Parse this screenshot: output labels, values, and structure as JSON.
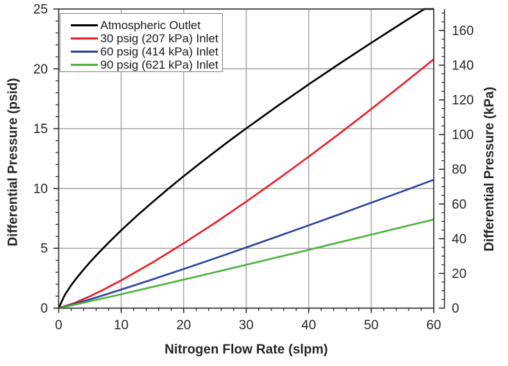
{
  "chart_data": {
    "type": "line",
    "title": "",
    "xlabel": "Nitrogen Flow Rate (slpm)",
    "ylabel_left": "Differential Pressure (psid)",
    "ylabel_right": "Differential Pressure (kPa)",
    "xlim": [
      0,
      60
    ],
    "ylim_left_psid": [
      0,
      25
    ],
    "ylim_right_kpa": [
      0,
      172.37
    ],
    "x_major_ticks": [
      0,
      10,
      20,
      30,
      40,
      50,
      60
    ],
    "x_minor_step": 2,
    "y_left_major_ticks": [
      0,
      5,
      10,
      15,
      20,
      25
    ],
    "y_left_minor_step": 1,
    "y_right_major_ticks": [
      0,
      20,
      40,
      60,
      80,
      100,
      120,
      140,
      160
    ],
    "y_right_minor_step": 5,
    "grid": true,
    "legend_position": "upper-left",
    "series": [
      {
        "name": "Atmospheric Outlet",
        "color": "#000000",
        "x": [
          0,
          1,
          2,
          3,
          4,
          5,
          6,
          8,
          10,
          12.5,
          15,
          17.5,
          20,
          22.5,
          25,
          27.5,
          30,
          35,
          40,
          45,
          50,
          55,
          58.5,
          60
        ],
        "y": [
          0,
          1.12,
          1.91,
          2.6,
          3.23,
          3.83,
          4.4,
          5.48,
          6.5,
          7.71,
          8.85,
          9.96,
          11.03,
          12.06,
          13.07,
          14.06,
          15.02,
          16.89,
          18.7,
          20.46,
          22.17,
          23.85,
          25,
          25
        ]
      },
      {
        "name": "30 psig (207 kPa) Inlet",
        "color": "#ec1c24",
        "x": [
          0,
          2.5,
          5,
          7.5,
          10,
          15,
          20,
          25,
          30,
          35,
          40,
          45,
          50,
          55,
          60
        ],
        "y": [
          0,
          0.42,
          0.99,
          1.63,
          2.32,
          3.81,
          5.42,
          7.12,
          8.9,
          10.75,
          12.66,
          14.62,
          16.64,
          18.7,
          20.8
        ]
      },
      {
        "name": "60 psig (414 kPa) Inlet",
        "color": "#31409b",
        "x": [
          0,
          2.5,
          5,
          7.5,
          10,
          15,
          20,
          25,
          30,
          35,
          40,
          45,
          50,
          55,
          60
        ],
        "y": [
          0,
          0.35,
          0.73,
          1.13,
          1.55,
          2.4,
          3.27,
          4.16,
          5.07,
          5.99,
          6.92,
          7.86,
          8.81,
          9.76,
          10.73
        ]
      },
      {
        "name": "90 psig (621 kPa) Inlet",
        "color": "#4cb33f",
        "x": [
          0,
          2.5,
          5,
          7.5,
          10,
          15,
          20,
          25,
          30,
          35,
          40,
          45,
          50,
          55,
          60
        ],
        "y": [
          0,
          0.28,
          0.57,
          0.86,
          1.16,
          1.77,
          2.38,
          3.0,
          3.62,
          4.25,
          4.87,
          5.51,
          6.14,
          6.78,
          7.41
        ]
      }
    ]
  },
  "legend": {
    "entries": [
      {
        "label": "Atmospheric Outlet",
        "color": "#000000"
      },
      {
        "label": "30 psig (207 kPa) Inlet",
        "color": "#ec1c24"
      },
      {
        "label": "60 psig (414 kPa) Inlet",
        "color": "#31409b"
      },
      {
        "label": "90 psig (621 kPa) Inlet",
        "color": "#4cb33f"
      }
    ]
  },
  "colors": {
    "text": "#262626",
    "axis": "#2e2e2e",
    "grid": "#9e9e9e",
    "legend_border": "#7f7f7f"
  }
}
